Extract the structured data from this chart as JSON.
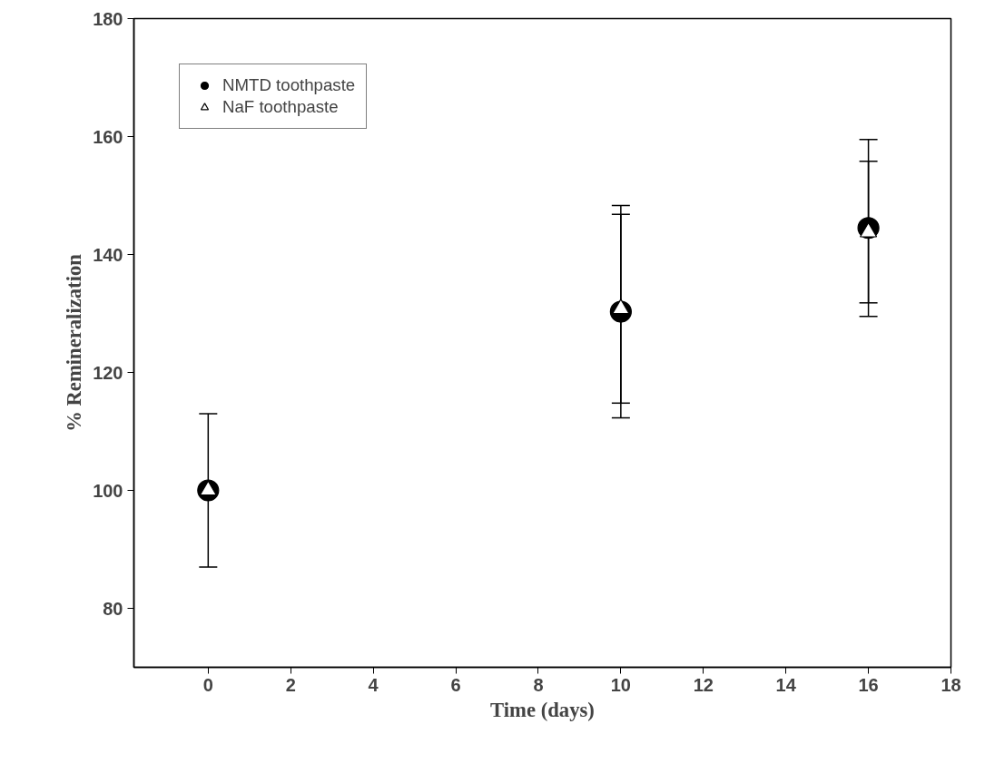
{
  "chart_data": {
    "type": "scatter",
    "xlabel": "Time (days)",
    "ylabel": "% Remineralization",
    "x": [
      0,
      10,
      16
    ],
    "series": [
      {
        "name": "NMTD toothpaste",
        "color": "#000000",
        "marker": "circle",
        "values": [
          100,
          130.3,
          144.5
        ],
        "errors": [
          13,
          18,
          15
        ]
      },
      {
        "name": "NaF toothpaste",
        "color": "#ffffff",
        "marker": "triangle",
        "values": [
          100,
          130.8,
          143.8
        ],
        "errors": [
          13,
          16,
          12
        ]
      }
    ],
    "xlim": [
      -1.8,
      18
    ],
    "xticks": [
      0,
      2,
      4,
      6,
      8,
      10,
      12,
      14,
      16,
      18
    ],
    "ylim": [
      70,
      180
    ],
    "yticks": [
      80,
      100,
      120,
      140,
      160,
      180
    ],
    "grid": false,
    "legend": "top left"
  }
}
